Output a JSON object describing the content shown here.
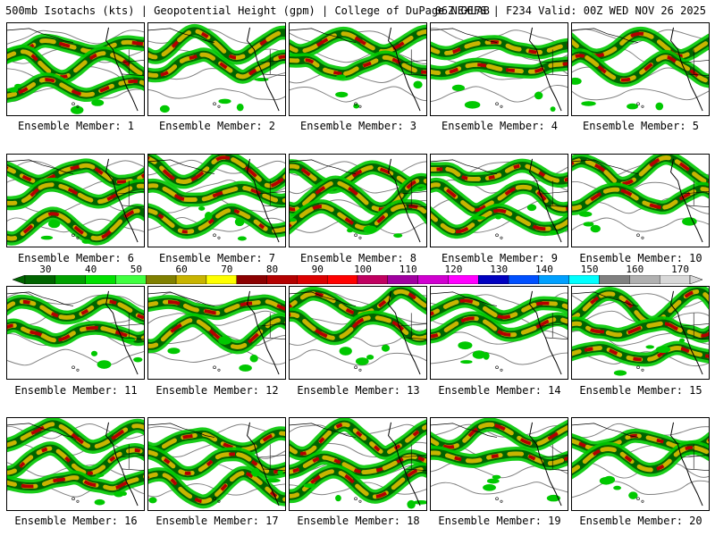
{
  "header": {
    "left": "500mb Isotachs (kts) | Geopotential Height (gpm) | College of DuPage NEXLAB",
    "right": "06Z GEFS | F234 Valid: 00Z WED NOV 26 2025"
  },
  "members": [
    {
      "label": "Ensemble Member: 1"
    },
    {
      "label": "Ensemble Member: 2"
    },
    {
      "label": "Ensemble Member: 3"
    },
    {
      "label": "Ensemble Member: 4"
    },
    {
      "label": "Ensemble Member: 5"
    },
    {
      "label": "Ensemble Member: 6"
    },
    {
      "label": "Ensemble Member: 7"
    },
    {
      "label": "Ensemble Member: 8"
    },
    {
      "label": "Ensemble Member: 9"
    },
    {
      "label": "Ensemble Member: 10"
    },
    {
      "label": "Ensemble Member: 11"
    },
    {
      "label": "Ensemble Member: 12"
    },
    {
      "label": "Ensemble Member: 13"
    },
    {
      "label": "Ensemble Member: 14"
    },
    {
      "label": "Ensemble Member: 15"
    },
    {
      "label": "Ensemble Member: 16"
    },
    {
      "label": "Ensemble Member: 17"
    },
    {
      "label": "Ensemble Member: 18"
    },
    {
      "label": "Ensemble Member: 19"
    },
    {
      "label": "Ensemble Member: 20"
    }
  ],
  "colorbar": {
    "labels": [
      "30",
      "40",
      "50",
      "60",
      "70",
      "80",
      "90",
      "100",
      "110",
      "120",
      "130",
      "140",
      "150",
      "160",
      "170"
    ],
    "colors": [
      "#006400",
      "#00a000",
      "#00e000",
      "#40ff40",
      "#808000",
      "#c8b400",
      "#ffff00",
      "#8b0000",
      "#b40000",
      "#dc0000",
      "#ff0000",
      "#c00060",
      "#a000a0",
      "#d000d0",
      "#ff00ff",
      "#0000c0",
      "#0050ff",
      "#00a0ff",
      "#00ffff",
      "#808080",
      "#b0b0b0",
      "#d8d8d8"
    ]
  },
  "map_colors": {
    "jet_light": "#00c800",
    "jet_mid": "#006400",
    "jet_yellow": "#c8b400",
    "jet_core": "#b40000",
    "height_contour": "#808080",
    "coastline": "#000000"
  }
}
